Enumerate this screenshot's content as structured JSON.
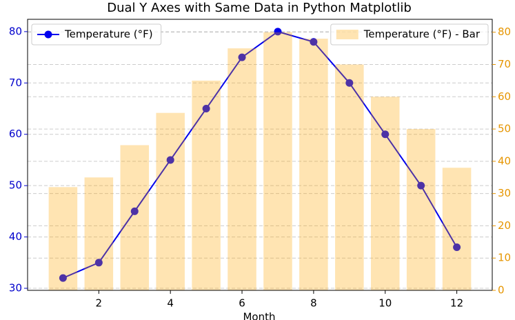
{
  "chart_data": {
    "type": "dual-axis",
    "title": "Dual Y Axes with Same Data in Python Matplotlib",
    "x_label": "Month",
    "x": [
      1,
      2,
      3,
      4,
      5,
      6,
      7,
      8,
      9,
      10,
      11,
      12
    ],
    "series": [
      {
        "name": "Temperature (°F)",
        "type": "line",
        "axis": "y",
        "color": "#0000ee",
        "values": [
          32,
          35,
          45,
          55,
          65,
          75,
          80,
          78,
          70,
          60,
          50,
          38
        ]
      },
      {
        "name": "Temperature (°F) - Bar",
        "type": "bar",
        "axis": "y2",
        "color": "#ffa500",
        "values": [
          32,
          35,
          45,
          55,
          65,
          75,
          80,
          78,
          70,
          60,
          50,
          38
        ]
      }
    ],
    "xlim": [
      0.01,
      12.99
    ],
    "xticks": [
      2,
      4,
      6,
      8,
      10,
      12
    ],
    "ylim": [
      29.6,
      82.4
    ],
    "yticks": [
      30,
      40,
      50,
      60,
      70,
      80
    ],
    "y_color": "#0000cc",
    "y2lim": [
      0,
      84
    ],
    "y2ticks": [
      0,
      10,
      20,
      30,
      40,
      50,
      60,
      70,
      80
    ],
    "y2_color": "#e69500",
    "grid": true,
    "legend_corner": {
      "y": "upper left",
      "y2": "upper right"
    }
  }
}
